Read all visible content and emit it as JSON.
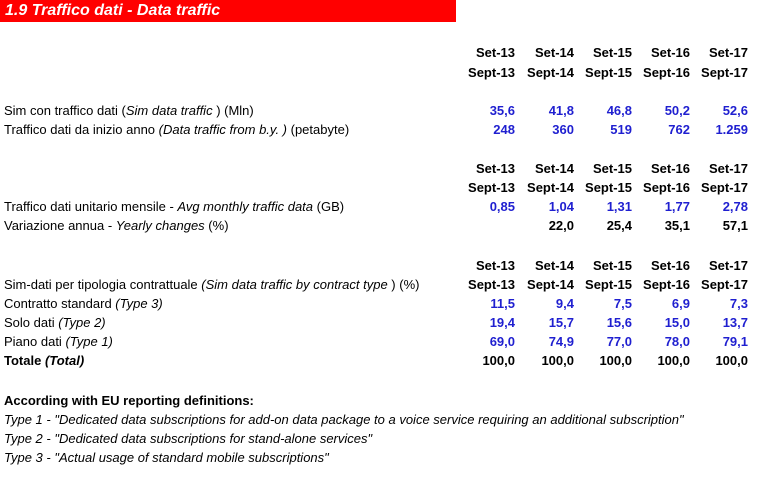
{
  "title": "1.9 Traffico dati - Data traffic",
  "headers": {
    "it": [
      "Set-13",
      "Set-14",
      "Set-15",
      "Set-16",
      "Set-17"
    ],
    "en": [
      "Sept-13",
      "Sept-14",
      "Sept-15",
      "Sept-16",
      "Sept-17"
    ]
  },
  "section1": {
    "rows": [
      {
        "label_pre": "Sim con traffico dati (",
        "label_it": "Sim data traffic",
        "label_post": " ) (Mln)",
        "values": [
          "35,6",
          "41,8",
          "46,8",
          "50,2",
          "52,6"
        ]
      },
      {
        "label_pre": "Traffico dati da inizio anno ",
        "label_it": "(Data traffic from b.y. )",
        "label_post": " (petabyte)",
        "values": [
          "248",
          "360",
          "519",
          "762",
          "1.259"
        ]
      }
    ]
  },
  "section2": {
    "rows": [
      {
        "label_pre": "Traffico dati unitario mensile - ",
        "label_it": "Avg monthly traffic data",
        "label_post": "  (GB)",
        "values": [
          "0,85",
          "1,04",
          "1,31",
          "1,77",
          "2,78"
        ]
      },
      {
        "label_pre": "Variazione annua  - ",
        "label_it": "Yearly changes",
        "label_post": "  (%)",
        "values": [
          "",
          "22,0",
          "25,4",
          "35,1",
          "57,1"
        ]
      }
    ]
  },
  "section3": {
    "header_label_pre": "Sim-dati per tipologia contrattuale ",
    "header_label_it": "(Sim data traffic by contract type",
    "header_label_post": " ) (%)",
    "rows": [
      {
        "label_pre": "Contratto standard ",
        "label_it": "(Type 3)",
        "values": [
          "11,5",
          "9,4",
          "7,5",
          "6,9",
          "7,3"
        ]
      },
      {
        "label_pre": "Solo dati ",
        "label_it": "(Type 2)",
        "values": [
          "19,4",
          "15,7",
          "15,6",
          "15,0",
          "13,7"
        ]
      },
      {
        "label_pre": "Piano dati ",
        "label_it": "(Type 1)",
        "values": [
          "69,0",
          "74,9",
          "77,0",
          "78,0",
          "79,1"
        ]
      }
    ],
    "total": {
      "label_pre": "Totale ",
      "label_it": "(Total)",
      "values": [
        "100,0",
        "100,0",
        "100,0",
        "100,0",
        "100,0"
      ]
    }
  },
  "notes": {
    "heading": "According with EU reporting definitions:",
    "lines": [
      "Type 1 - \"Dedicated data subscriptions for add-on data package to a voice service requiring an additional subscription\"",
      "Type 2 - \"Dedicated data subscriptions for stand-alone services\"",
      "Type 3 - \"Actual usage of standard mobile subscriptions\""
    ]
  },
  "colors": {
    "title_bg": "#ff0000",
    "value_blue": "#1f1fd0"
  }
}
